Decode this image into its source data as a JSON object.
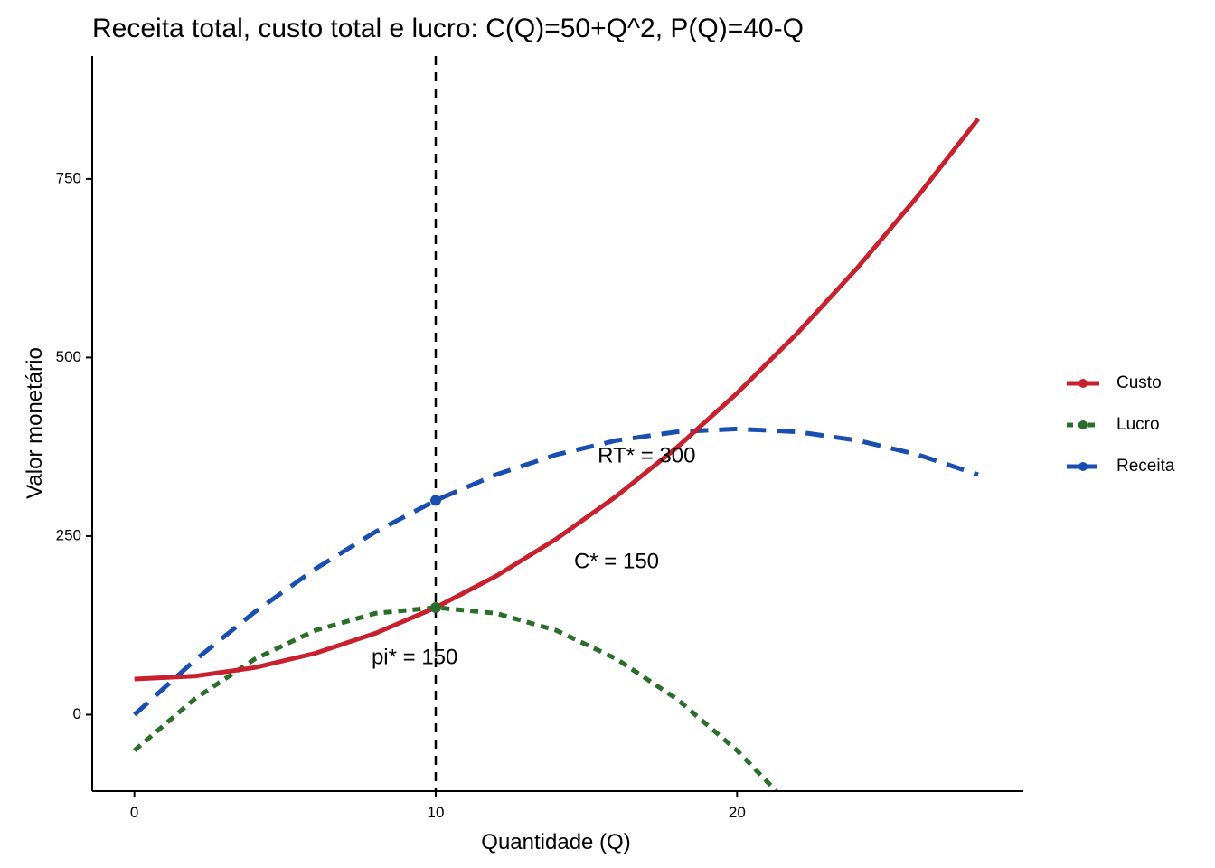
{
  "chart_data": {
    "type": "line",
    "title": "Receita total, custo total e lucro: C(Q)=50+Q^2, P(Q)=40-Q",
    "xlabel": "Quantidade (Q)",
    "ylabel": "Valor monetário",
    "xlim": [
      -1.4,
      29.5
    ],
    "ylim": [
      -107,
      922
    ],
    "x_ticks": [
      0,
      10,
      20
    ],
    "y_ticks": [
      0,
      250,
      500,
      750
    ],
    "grid": false,
    "legend_position": "right",
    "colors": {
      "Custo": "#C8202C",
      "Lucro": "#2A6E2A",
      "Receita": "#1A4FB0"
    },
    "series": [
      {
        "name": "Custo",
        "style": "solid",
        "x": [
          0,
          2,
          4,
          6,
          8,
          10,
          12,
          14,
          16,
          18,
          20,
          22,
          24,
          26,
          28
        ],
        "y": [
          50,
          54,
          66,
          86,
          114,
          150,
          194,
          246,
          306,
          374,
          450,
          534,
          626,
          726,
          834
        ]
      },
      {
        "name": "Lucro",
        "style": "dotted",
        "x": [
          0,
          2,
          4,
          6,
          8,
          10,
          12,
          14,
          16,
          18,
          20,
          21.3
        ],
        "y": [
          -50,
          22,
          78,
          118,
          142,
          150,
          142,
          118,
          78,
          22,
          -50,
          -107
        ]
      },
      {
        "name": "Receita",
        "style": "dashed",
        "x": [
          0,
          2,
          4,
          6,
          8,
          10,
          12,
          14,
          16,
          18,
          20,
          22,
          24,
          26,
          28
        ],
        "y": [
          0,
          76,
          144,
          204,
          256,
          300,
          336,
          364,
          384,
          396,
          400,
          396,
          384,
          364,
          336
        ]
      }
    ],
    "vline": {
      "x": 10,
      "style": "dashed",
      "color": "#000000"
    },
    "points": [
      {
        "x": 10,
        "y": 300,
        "series": "Receita"
      },
      {
        "x": 10,
        "y": 150,
        "series": "Lucro"
      }
    ],
    "annotations": [
      {
        "text": "RT* = 300",
        "x": 17,
        "y": 361
      },
      {
        "text": "C* = 150",
        "x": 16,
        "y": 213
      },
      {
        "text": "pi* = 150",
        "x": 9.3,
        "y": 79
      }
    ]
  }
}
